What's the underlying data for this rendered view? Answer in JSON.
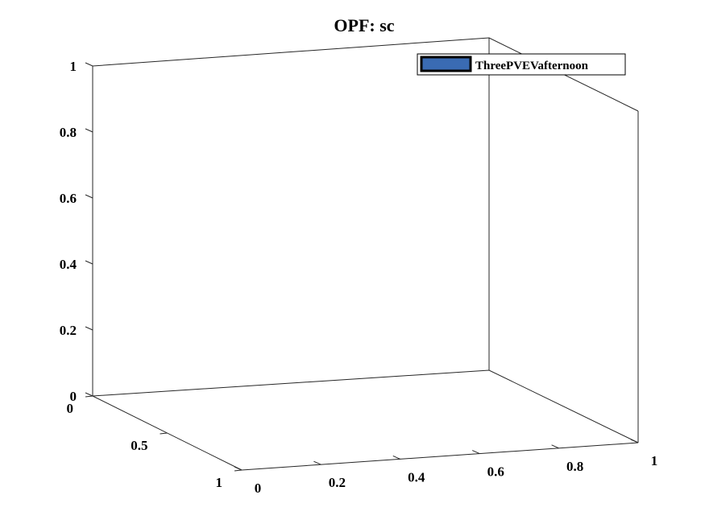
{
  "chart_data": {
    "type": "bar",
    "title": "OPF: sc",
    "xlabel": "",
    "ylabel": "",
    "zlabel": "",
    "x_ticks": [
      "0",
      "0.2",
      "0.4",
      "0.6",
      "0.8",
      "1"
    ],
    "y_ticks": [
      "0",
      "0.5",
      "1"
    ],
    "z_ticks": [
      "0",
      "0.2",
      "0.4",
      "0.6",
      "0.8",
      "1"
    ],
    "xlim": [
      0,
      1
    ],
    "ylim": [
      0,
      1
    ],
    "zlim": [
      0,
      1
    ],
    "series": [
      {
        "name": "ThreePVEVafternoon",
        "values": [],
        "color": "#3a6bb3"
      }
    ],
    "legend_position": "top-right",
    "grid": false,
    "view": "3d"
  }
}
